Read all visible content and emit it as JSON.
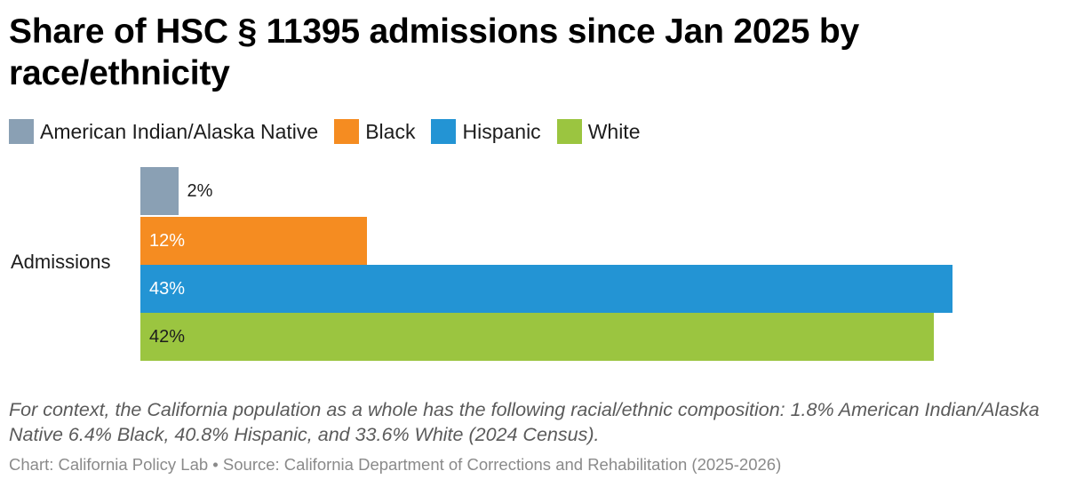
{
  "chart_data": {
    "type": "bar",
    "orientation": "horizontal",
    "title": "Share of HSC § 11395 admissions since Jan 2025 by race/ethnicity",
    "categories": [
      "Admissions"
    ],
    "series": [
      {
        "name": "American Indian/Alaska Native",
        "values": [
          2
        ],
        "label": "2%",
        "color": "#8aa0b4"
      },
      {
        "name": "Black",
        "values": [
          12
        ],
        "label": "12%",
        "color": "#f58c21"
      },
      {
        "name": "Hispanic",
        "values": [
          43
        ],
        "label": "43%",
        "color": "#2394d4"
      },
      {
        "name": "White",
        "values": [
          42
        ],
        "label": "42%",
        "color": "#9bc540"
      }
    ],
    "xlim": [
      0,
      43
    ],
    "grid": false,
    "legend_position": "top-left",
    "note": "For context, the California population as a whole has the following racial/ethnic composition: 1.8% American Indian/Alaska Native 6.4% Black, 40.8% Hispanic, and 33.6% White (2024 Census).",
    "footer": "Chart: California Policy Lab • Source: California Department of Corrections and Rehabilitation (2025-2026)"
  }
}
